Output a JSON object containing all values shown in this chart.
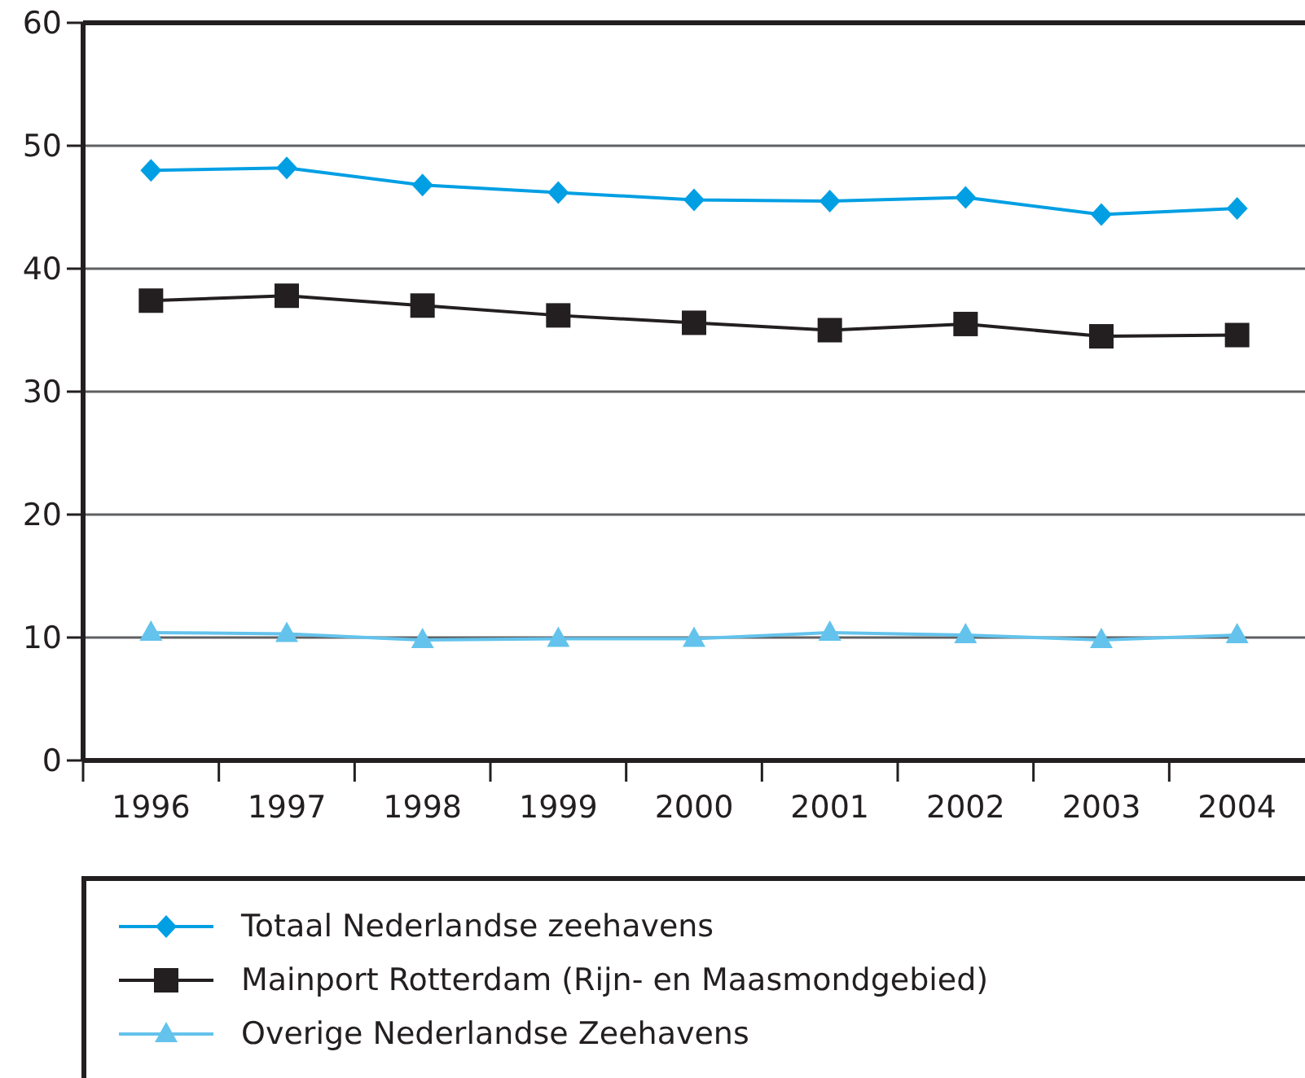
{
  "chart_data": {
    "type": "line",
    "categories": [
      "1996",
      "1997",
      "1998",
      "1999",
      "2000",
      "2001",
      "2002",
      "2003",
      "2004"
    ],
    "series": [
      {
        "name": "Totaal Nederlandse zeehavens",
        "color": "#009fe3",
        "marker": "diamond",
        "values": [
          48.0,
          48.2,
          46.8,
          46.2,
          45.6,
          45.5,
          45.8,
          44.4,
          44.9
        ]
      },
      {
        "name": "Mainport Rotterdam (Rijn- en Maasmondgebied)",
        "color": "#231f20",
        "marker": "square",
        "values": [
          37.4,
          37.8,
          37.0,
          36.2,
          35.6,
          35.0,
          35.5,
          34.5,
          34.6
        ]
      },
      {
        "name": "Overige Nederlandse Zeehavens",
        "color": "#63c3ec",
        "marker": "triangle",
        "values": [
          10.4,
          10.3,
          9.8,
          9.9,
          9.9,
          10.4,
          10.2,
          9.8,
          10.2
        ]
      }
    ],
    "ylim": [
      0,
      60
    ],
    "yticks": [
      0,
      10,
      20,
      30,
      40,
      50,
      60
    ],
    "grid": "y",
    "legend": "bottom",
    "line_style": "solid"
  }
}
